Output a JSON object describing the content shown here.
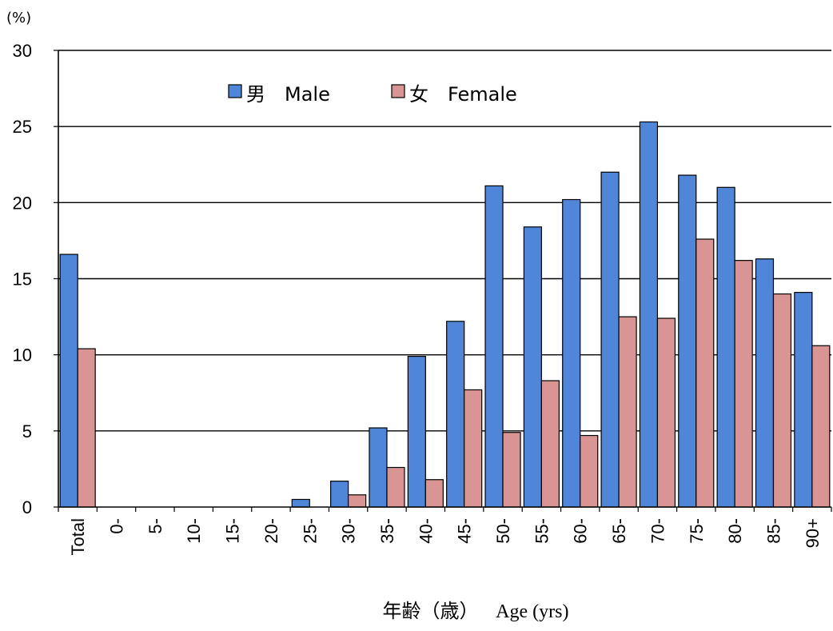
{
  "chart_data": {
    "type": "bar",
    "y_unit": "(%)",
    "xlabel_jp": "年齢（歳）",
    "xlabel_en": "Age (yrs)",
    "ylim": [
      0,
      30
    ],
    "yticks": [
      0,
      5,
      10,
      15,
      20,
      25,
      30
    ],
    "grid": true,
    "legend_position": "top-center",
    "categories": [
      "Total",
      "0-",
      "5-",
      "10-",
      "15-",
      "20-",
      "25-",
      "30-",
      "35-",
      "40-",
      "45-",
      "50-",
      "55-",
      "60-",
      "65-",
      "70-",
      "75-",
      "80-",
      "85-",
      "90+"
    ],
    "series": [
      {
        "name": "男　Male",
        "color": "#4f86d8",
        "values": [
          16.6,
          0,
          0,
          0,
          0,
          0,
          0.5,
          1.7,
          5.2,
          9.9,
          12.2,
          21.1,
          18.4,
          20.2,
          22.0,
          25.3,
          21.8,
          21.0,
          16.3,
          14.1
        ]
      },
      {
        "name": "女　Female",
        "color": "#d99594",
        "values": [
          10.4,
          0,
          0,
          0,
          0,
          0,
          0,
          0.8,
          2.6,
          1.8,
          7.7,
          4.9,
          8.3,
          4.7,
          12.5,
          12.4,
          17.6,
          16.2,
          14.0,
          10.6
        ]
      }
    ]
  }
}
